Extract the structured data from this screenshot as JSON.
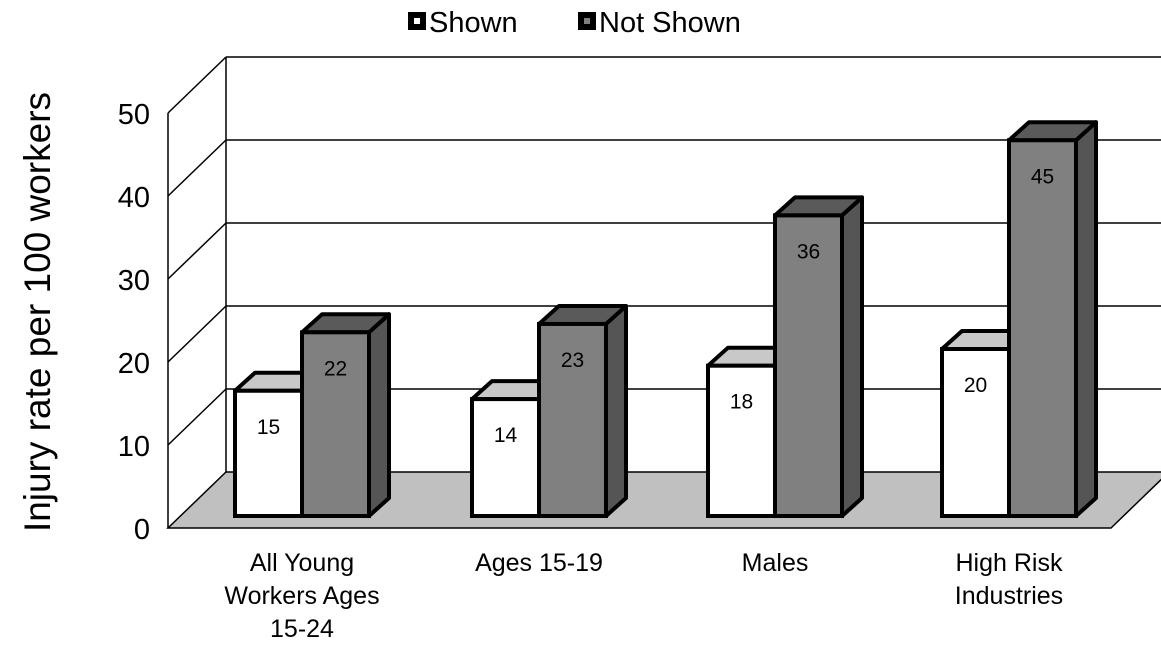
{
  "chart_data": {
    "type": "bar",
    "title": "",
    "xlabel": "",
    "ylabel": "Injury rate per 100 workers",
    "ylim": [
      0,
      50
    ],
    "yticks": [
      0,
      10,
      20,
      30,
      40,
      50
    ],
    "grid": true,
    "legend_position": "top",
    "categories": [
      [
        "All Young",
        "Workers Ages",
        "15-24"
      ],
      [
        "Ages 15-19"
      ],
      [
        "Males"
      ],
      [
        "High Risk",
        "Industries"
      ]
    ],
    "series": [
      {
        "name": "Shown",
        "values": [
          15,
          14,
          18,
          20
        ],
        "color": "#ffffff"
      },
      {
        "name": "Not Shown",
        "values": [
          22,
          23,
          36,
          45
        ],
        "color": "#808080"
      }
    ]
  }
}
